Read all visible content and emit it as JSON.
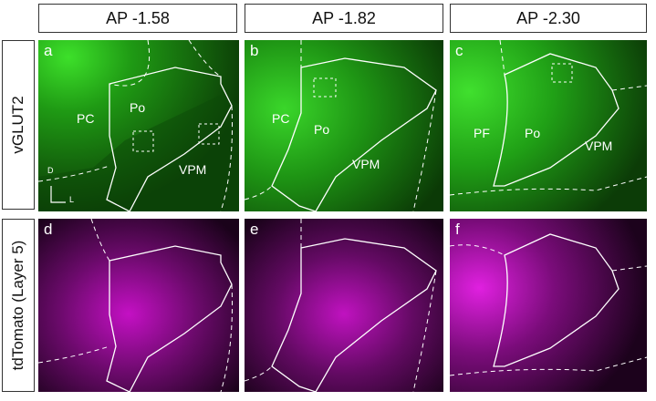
{
  "columns": [
    "AP -1.58",
    "AP -1.82",
    "AP -2.30"
  ],
  "rows": [
    "vGLUT2",
    "tdTomato (Layer 5)"
  ],
  "panels": {
    "a": {
      "label": "a",
      "regions": [
        "PC",
        "Po",
        "VPM"
      ]
    },
    "b": {
      "label": "b",
      "regions": [
        "PC",
        "Po",
        "VPM"
      ]
    },
    "c": {
      "label": "c",
      "regions": [
        "PF",
        "Po",
        "VPM"
      ]
    },
    "d": {
      "label": "d"
    },
    "e": {
      "label": "e"
    },
    "f": {
      "label": "f"
    }
  },
  "axis": {
    "dorsal": "D",
    "lateral": "L"
  },
  "colors": {
    "green": "#2bbf1a",
    "magenta": "#d400d4",
    "outline": "#ffffff"
  }
}
